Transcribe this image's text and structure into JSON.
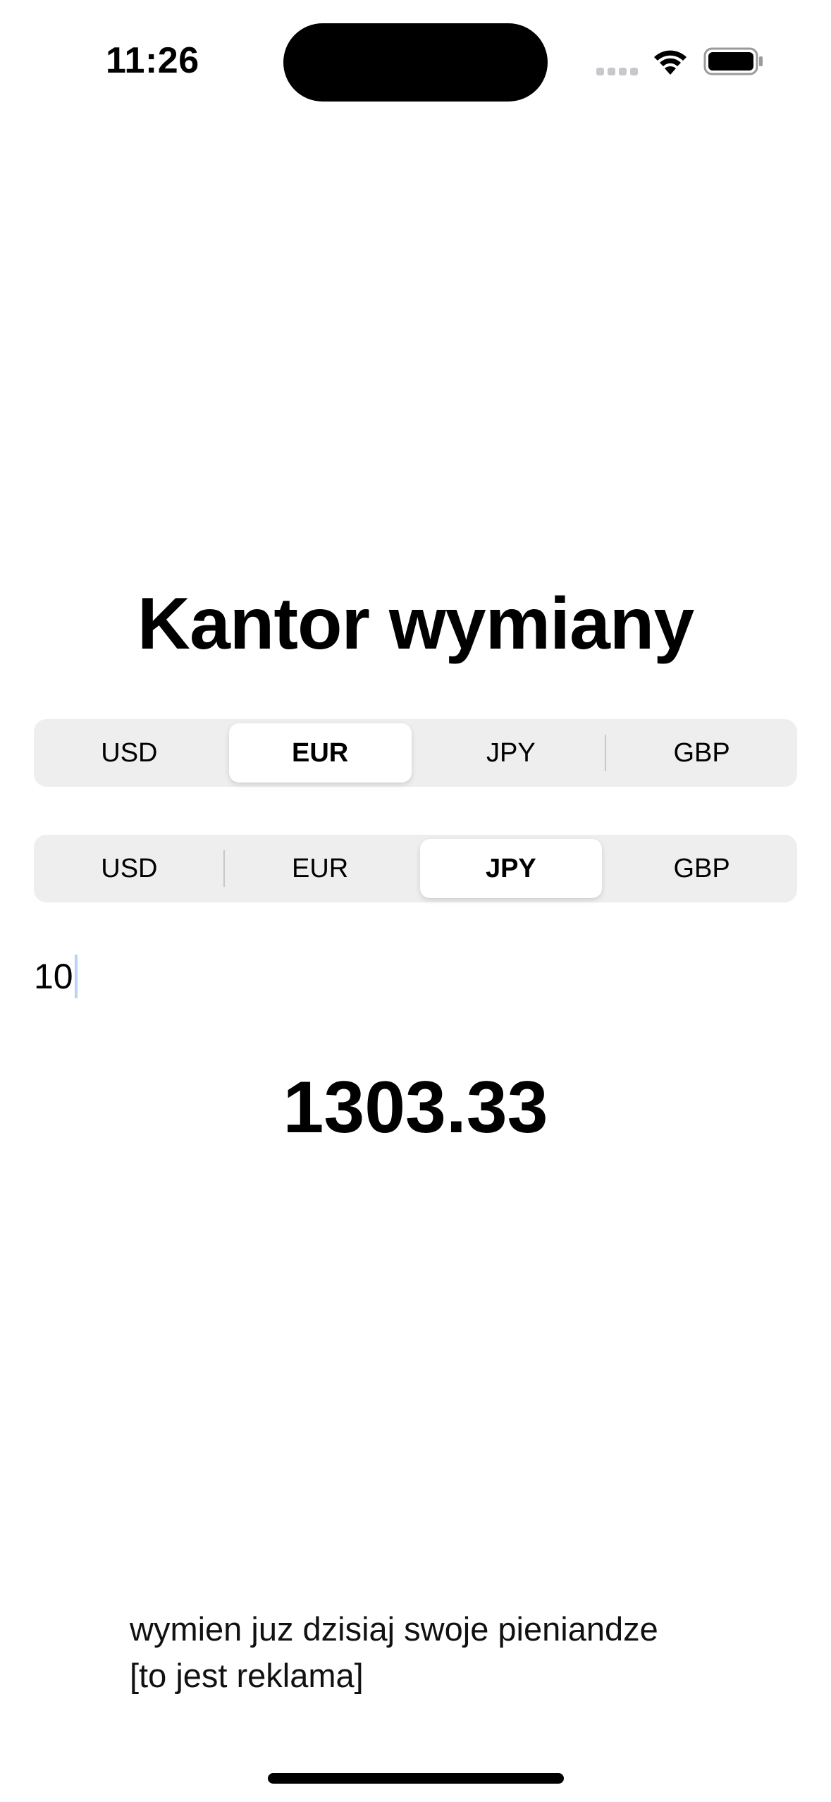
{
  "status_bar": {
    "time": "11:26",
    "icons": [
      "signal-icon",
      "wifi-icon",
      "battery-icon"
    ]
  },
  "title": "Kantor wymiany",
  "from_currency": {
    "options": [
      "USD",
      "EUR",
      "JPY",
      "GBP"
    ],
    "selected": "EUR"
  },
  "to_currency": {
    "options": [
      "USD",
      "EUR",
      "JPY",
      "GBP"
    ],
    "selected": "JPY"
  },
  "amount_input": {
    "value": "10"
  },
  "result": "1303.33",
  "ad": {
    "line1": "wymien juz dzisiaj swoje pieniandze",
    "line2": "[to jest reklama]"
  },
  "colors": {
    "segment_background": "#eeeeef",
    "segment_selected": "#ffffff",
    "caret": "#b9d3f5"
  }
}
